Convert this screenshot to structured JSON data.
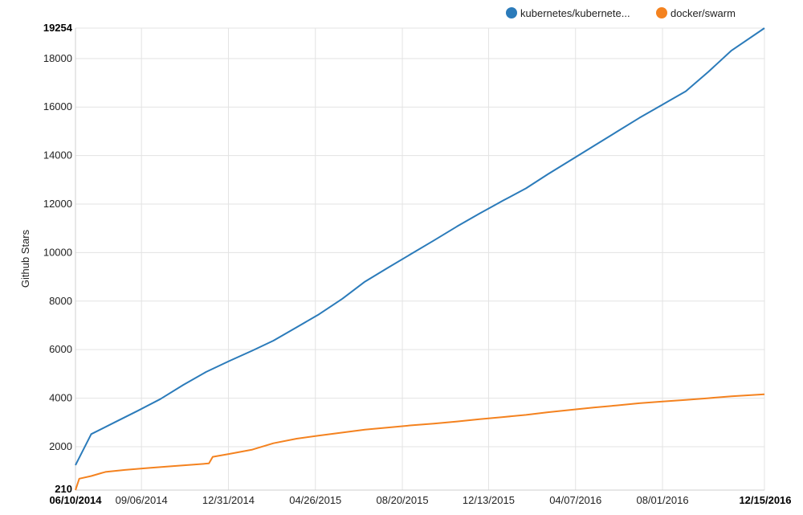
{
  "chart_data": {
    "type": "line",
    "ylabel": "Github Stars",
    "ylim": [
      210,
      19254
    ],
    "y_min_label": "210",
    "y_max_label": "19254",
    "y_ticks": [
      "2000",
      "4000",
      "6000",
      "8000",
      "10000",
      "12000",
      "14000",
      "16000",
      "18000"
    ],
    "x_start_label": "06/10/2014",
    "x_end_label": "12/15/2016",
    "x_ticks": [
      "09/06/2014",
      "12/31/2014",
      "04/26/2015",
      "08/20/2015",
      "12/13/2015",
      "04/07/2016",
      "08/01/2016"
    ],
    "x_domain": [
      "2014-06-10",
      "2016-12-15"
    ],
    "grid": true,
    "legend_position": "top-right",
    "series": [
      {
        "name": "kubernetes/kubernete...",
        "color": "#2b7bba",
        "points": [
          [
            "2014-06-10",
            1240
          ],
          [
            "2014-07-01",
            2520
          ],
          [
            "2014-08-01",
            3000
          ],
          [
            "2014-09-01",
            3480
          ],
          [
            "2014-10-01",
            3960
          ],
          [
            "2014-11-01",
            4550
          ],
          [
            "2014-12-01",
            5080
          ],
          [
            "2015-01-01",
            5530
          ],
          [
            "2015-02-01",
            5960
          ],
          [
            "2015-03-01",
            6370
          ],
          [
            "2015-04-01",
            6920
          ],
          [
            "2015-05-01",
            7460
          ],
          [
            "2015-06-01",
            8100
          ],
          [
            "2015-07-01",
            8800
          ],
          [
            "2015-08-01",
            9380
          ],
          [
            "2015-09-01",
            9950
          ],
          [
            "2015-10-01",
            10500
          ],
          [
            "2015-11-01",
            11080
          ],
          [
            "2015-12-01",
            11610
          ],
          [
            "2016-01-01",
            12140
          ],
          [
            "2016-02-01",
            12650
          ],
          [
            "2016-03-01",
            13230
          ],
          [
            "2016-04-01",
            13820
          ],
          [
            "2016-05-01",
            14390
          ],
          [
            "2016-06-01",
            14980
          ],
          [
            "2016-07-01",
            15550
          ],
          [
            "2016-08-01",
            16100
          ],
          [
            "2016-09-01",
            16650
          ],
          [
            "2016-10-01",
            17450
          ],
          [
            "2016-11-01",
            18330
          ],
          [
            "2016-12-15",
            19254
          ]
        ]
      },
      {
        "name": "docker/swarm",
        "color": "#f4821f",
        "points": [
          [
            "2014-06-10",
            210
          ],
          [
            "2014-06-15",
            680
          ],
          [
            "2014-07-01",
            790
          ],
          [
            "2014-07-20",
            960
          ],
          [
            "2014-08-15",
            1040
          ],
          [
            "2014-09-15",
            1120
          ],
          [
            "2014-10-15",
            1190
          ],
          [
            "2014-11-15",
            1260
          ],
          [
            "2014-12-05",
            1310
          ],
          [
            "2014-12-10",
            1580
          ],
          [
            "2015-01-01",
            1700
          ],
          [
            "2015-02-01",
            1880
          ],
          [
            "2015-03-01",
            2140
          ],
          [
            "2015-04-01",
            2330
          ],
          [
            "2015-05-01",
            2460
          ],
          [
            "2015-06-01",
            2580
          ],
          [
            "2015-07-01",
            2700
          ],
          [
            "2015-08-01",
            2790
          ],
          [
            "2015-09-01",
            2880
          ],
          [
            "2015-10-01",
            2950
          ],
          [
            "2015-11-01",
            3040
          ],
          [
            "2015-12-01",
            3130
          ],
          [
            "2016-01-01",
            3220
          ],
          [
            "2016-02-01",
            3310
          ],
          [
            "2016-03-01",
            3420
          ],
          [
            "2016-04-01",
            3520
          ],
          [
            "2016-05-01",
            3610
          ],
          [
            "2016-06-01",
            3700
          ],
          [
            "2016-07-01",
            3790
          ],
          [
            "2016-08-01",
            3860
          ],
          [
            "2016-09-01",
            3930
          ],
          [
            "2016-10-01",
            4000
          ],
          [
            "2016-11-01",
            4080
          ],
          [
            "2016-12-15",
            4160
          ]
        ]
      }
    ]
  }
}
